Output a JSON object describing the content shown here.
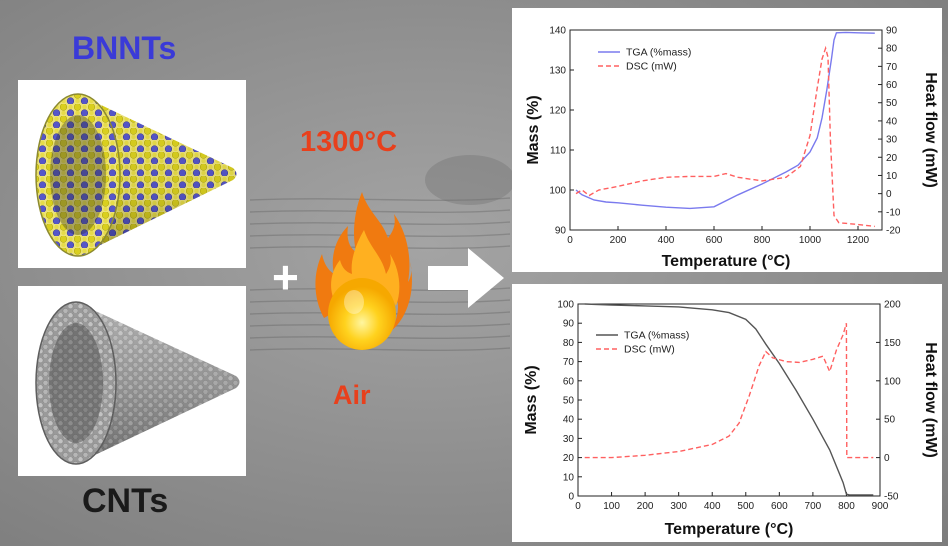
{
  "labels": {
    "bnnts": "BNNTs",
    "cnts": "CNTs",
    "temperature": "1300°C",
    "air": "Air",
    "plus": "+"
  },
  "colors": {
    "bnnts_label": "#3a3ad8",
    "temperature_label": "#e8401c",
    "tga_top": "#7a7aee",
    "dsc": "#ff6060",
    "tga_bottom": "#555555"
  },
  "chart_data": [
    {
      "type": "line",
      "title": "",
      "xlabel": "Temperature (°C)",
      "ylabel": "Mass (%)",
      "y2label": "Heat flow (mW)",
      "xlim": [
        0,
        1300
      ],
      "ylim": [
        90,
        140
      ],
      "y2lim": [
        -20,
        90
      ],
      "xticks": [
        0,
        200,
        400,
        600,
        800,
        1000,
        1200
      ],
      "yticks": [
        90,
        100,
        110,
        120,
        130,
        140
      ],
      "y2ticks": [
        -20,
        -10,
        0,
        10,
        20,
        30,
        40,
        50,
        60,
        70,
        80,
        90
      ],
      "legend_position": "top-left",
      "series": [
        {
          "name": "TGA (%mass)",
          "axis": "left",
          "style": "solid",
          "x": [
            25,
            50,
            100,
            150,
            200,
            300,
            400,
            500,
            600,
            700,
            800,
            900,
            950,
            1000,
            1030,
            1050,
            1070,
            1090,
            1100,
            1110,
            1150,
            1200,
            1270
          ],
          "y": [
            100,
            98.8,
            97.5,
            97,
            96.8,
            96.2,
            95.7,
            95.4,
            95.8,
            98.8,
            101.5,
            104.5,
            106.2,
            109.5,
            113,
            118,
            125,
            133,
            137.5,
            139.3,
            139.4,
            139.3,
            139.2
          ]
        },
        {
          "name": "DSC (mW)",
          "axis": "right",
          "style": "dashed",
          "x": [
            25,
            50,
            80,
            120,
            200,
            300,
            400,
            500,
            550,
            600,
            650,
            700,
            800,
            900,
            960,
            1000,
            1030,
            1050,
            1065,
            1075,
            1085,
            1100,
            1120,
            1200,
            1270
          ],
          "y": [
            0,
            2,
            -1,
            2,
            4,
            7,
            9,
            9.5,
            9.5,
            9.5,
            11,
            9,
            7,
            9,
            15,
            32,
            58,
            74,
            80,
            75,
            30,
            -12,
            -16,
            -17,
            -18
          ]
        }
      ]
    },
    {
      "type": "line",
      "title": "",
      "xlabel": "Temperature (°C)",
      "ylabel": "Mass (%)",
      "y2label": "Heat flow (mW)",
      "xlim": [
        0,
        900
      ],
      "ylim": [
        0,
        100
      ],
      "y2lim": [
        -50,
        200
      ],
      "xticks": [
        0,
        100,
        200,
        300,
        400,
        500,
        600,
        700,
        800,
        900
      ],
      "yticks": [
        0,
        10,
        20,
        30,
        40,
        50,
        60,
        70,
        80,
        90,
        100
      ],
      "y2ticks": [
        -50,
        0,
        50,
        100,
        150,
        200
      ],
      "legend_position": "top-center",
      "series": [
        {
          "name": "TGA (%mass)",
          "axis": "left",
          "style": "solid",
          "x": [
            20,
            100,
            200,
            300,
            400,
            450,
            500,
            530,
            560,
            600,
            650,
            700,
            750,
            790,
            800,
            810,
            880
          ],
          "y": [
            100,
            99.5,
            99,
            98.5,
            97,
            95.5,
            92,
            87,
            79,
            69,
            55,
            40,
            24,
            7,
            1,
            0.5,
            0.5
          ]
        },
        {
          "name": "DSC (mW)",
          "axis": "right",
          "style": "dashed",
          "x": [
            20,
            100,
            200,
            300,
            400,
            450,
            480,
            510,
            540,
            560,
            580,
            620,
            660,
            700,
            730,
            750,
            770,
            790,
            800,
            801,
            810,
            880
          ],
          "y": [
            0,
            0,
            3,
            8,
            17,
            28,
            45,
            80,
            120,
            138,
            130,
            125,
            124,
            128,
            132,
            112,
            140,
            160,
            175,
            0,
            0,
            0
          ]
        }
      ]
    }
  ]
}
